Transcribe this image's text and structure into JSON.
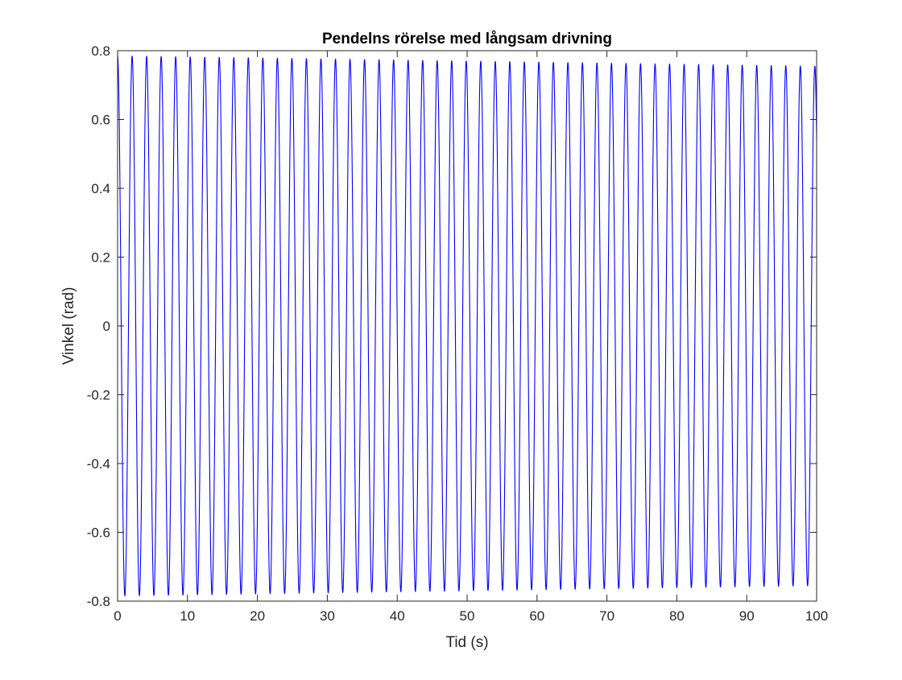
{
  "chart_data": {
    "type": "line",
    "title": "Pendelns rörelse med långsam drivning",
    "xlabel": "Tid (s)",
    "ylabel": "Vinkel (rad)",
    "xlim": [
      0,
      100
    ],
    "ylim": [
      -0.8,
      0.8
    ],
    "x_ticks": [
      0,
      10,
      20,
      30,
      40,
      50,
      60,
      70,
      80,
      90,
      100
    ],
    "y_ticks": [
      -0.8,
      -0.6,
      -0.4,
      -0.2,
      0,
      0.2,
      0.4,
      0.6,
      0.8
    ],
    "x_tick_labels": [
      "0",
      "10",
      "20",
      "30",
      "40",
      "50",
      "60",
      "70",
      "80",
      "90",
      "100"
    ],
    "y_tick_labels": [
      "-0.8",
      "-0.6",
      "-0.4",
      "-0.2",
      "0",
      "0.2",
      "0.4",
      "0.6",
      "0.8"
    ],
    "grid": false,
    "box": true,
    "series": [
      {
        "color": "#0000ff",
        "oscillation": {
          "initial_value": 0.785,
          "period_s": 2.078,
          "amplitude_start": 0.785,
          "amplitude_end": 0.755
        },
        "peak_times_s": [
          0,
          2.08,
          4.16,
          6.23,
          8.31,
          10.39,
          12.47,
          14.55,
          16.62,
          18.7,
          20.78,
          22.86,
          24.94,
          27.01,
          29.09,
          31.17,
          33.25,
          35.33,
          37.4,
          39.48,
          41.56,
          43.64,
          45.72,
          47.79,
          49.87,
          51.95,
          54.03,
          56.11,
          58.18,
          60.26,
          62.34,
          64.42,
          66.5,
          68.57,
          70.65,
          72.73,
          74.81,
          76.89,
          78.96,
          81.04,
          83.12,
          85.2,
          87.28,
          89.35,
          91.43,
          93.51,
          95.59,
          97.67,
          99.74
        ]
      }
    ]
  }
}
